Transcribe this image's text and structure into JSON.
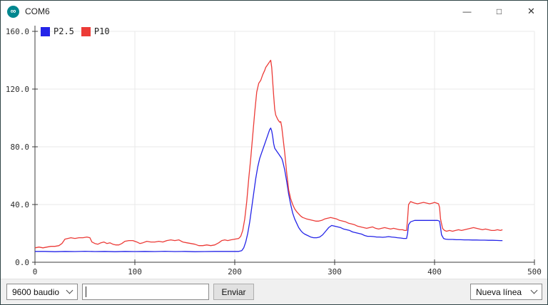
{
  "window": {
    "title": "COM6",
    "app_icon_glyph": "∞",
    "controls": {
      "minimize": "—",
      "maximize": "□",
      "close": "✕"
    }
  },
  "bottom_bar": {
    "baud_select": {
      "value": "9600 baudio"
    },
    "send_input": {
      "value": "",
      "placeholder": ""
    },
    "send_button_label": "Enviar",
    "line_ending_select": {
      "value": "Nueva línea"
    }
  },
  "chart_data": {
    "type": "line",
    "title": "",
    "xlabel": "",
    "ylabel": "",
    "xlim": [
      0,
      500
    ],
    "ylim": [
      0,
      160
    ],
    "x_ticks": [
      0,
      100,
      200,
      300,
      400,
      500
    ],
    "y_ticks": [
      "0.0",
      "40.0",
      "80.0",
      "120.0",
      "160.0"
    ],
    "grid": true,
    "legend_position": "top-left",
    "series": [
      {
        "name": "P2.5",
        "color": "#2424e8",
        "points": [
          [
            0,
            7.5
          ],
          [
            10,
            7.5
          ],
          [
            20,
            7.3
          ],
          [
            30,
            7.5
          ],
          [
            40,
            7.4
          ],
          [
            50,
            7.6
          ],
          [
            60,
            7.4
          ],
          [
            70,
            7.5
          ],
          [
            80,
            7.3
          ],
          [
            90,
            7.5
          ],
          [
            100,
            7.4
          ],
          [
            110,
            7.5
          ],
          [
            120,
            7.4
          ],
          [
            130,
            7.6
          ],
          [
            140,
            7.4
          ],
          [
            150,
            7.5
          ],
          [
            160,
            7.3
          ],
          [
            170,
            7.4
          ],
          [
            180,
            7.5
          ],
          [
            190,
            7.5
          ],
          [
            200,
            7.5
          ],
          [
            204,
            7.5
          ],
          [
            207,
            8
          ],
          [
            209,
            10
          ],
          [
            211,
            14
          ],
          [
            213,
            20
          ],
          [
            215,
            28
          ],
          [
            217,
            38
          ],
          [
            219,
            48
          ],
          [
            221,
            58
          ],
          [
            223,
            66
          ],
          [
            225,
            72
          ],
          [
            227,
            76
          ],
          [
            229,
            80
          ],
          [
            231,
            84
          ],
          [
            233,
            88
          ],
          [
            235,
            92
          ],
          [
            236,
            93
          ],
          [
            237,
            91
          ],
          [
            238,
            87
          ],
          [
            239,
            82
          ],
          [
            240,
            79
          ],
          [
            242,
            77
          ],
          [
            244,
            75
          ],
          [
            246,
            73
          ],
          [
            247,
            72
          ],
          [
            248,
            70
          ],
          [
            250,
            64
          ],
          [
            252,
            56
          ],
          [
            254,
            47
          ],
          [
            256,
            40
          ],
          [
            258,
            34
          ],
          [
            260,
            30
          ],
          [
            262,
            27
          ],
          [
            264,
            24
          ],
          [
            266,
            22
          ],
          [
            268,
            20.5
          ],
          [
            270,
            19.5
          ],
          [
            273,
            18.5
          ],
          [
            276,
            17.5
          ],
          [
            279,
            17
          ],
          [
            282,
            17
          ],
          [
            285,
            17.5
          ],
          [
            288,
            19
          ],
          [
            291,
            21.5
          ],
          [
            294,
            24
          ],
          [
            297,
            25.5
          ],
          [
            300,
            25
          ],
          [
            303,
            24.5
          ],
          [
            306,
            24
          ],
          [
            309,
            23
          ],
          [
            312,
            22.5
          ],
          [
            315,
            22
          ],
          [
            318,
            21
          ],
          [
            321,
            20.5
          ],
          [
            324,
            20
          ],
          [
            327,
            19.5
          ],
          [
            330,
            18.5
          ],
          [
            333,
            18
          ],
          [
            336,
            18
          ],
          [
            339,
            17.8
          ],
          [
            342,
            17.5
          ],
          [
            345,
            17.5
          ],
          [
            348,
            17.3
          ],
          [
            351,
            17.5
          ],
          [
            354,
            17.8
          ],
          [
            357,
            17.5
          ],
          [
            360,
            17.3
          ],
          [
            363,
            17
          ],
          [
            366,
            16.8
          ],
          [
            369,
            16.5
          ],
          [
            372,
            16.5
          ],
          [
            373,
            20
          ],
          [
            374,
            26
          ],
          [
            376,
            28
          ],
          [
            378,
            28.5
          ],
          [
            380,
            29
          ],
          [
            384,
            29
          ],
          [
            388,
            29
          ],
          [
            392,
            29
          ],
          [
            396,
            29
          ],
          [
            400,
            29
          ],
          [
            403,
            29
          ],
          [
            405,
            28.5
          ],
          [
            406,
            24
          ],
          [
            407,
            19
          ],
          [
            409,
            16.5
          ],
          [
            411,
            16
          ],
          [
            414,
            15.8
          ],
          [
            418,
            15.8
          ],
          [
            422,
            15.6
          ],
          [
            426,
            15.6
          ],
          [
            430,
            15.5
          ],
          [
            434,
            15.5
          ],
          [
            438,
            15.4
          ],
          [
            442,
            15.4
          ],
          [
            446,
            15.3
          ],
          [
            450,
            15.3
          ],
          [
            454,
            15.2
          ],
          [
            458,
            15.2
          ],
          [
            462,
            15.1
          ],
          [
            466,
            15
          ],
          [
            468,
            15
          ]
        ]
      },
      {
        "name": "P10",
        "color": "#ec3b37",
        "points": [
          [
            0,
            10
          ],
          [
            4,
            10.5
          ],
          [
            8,
            10
          ],
          [
            12,
            10.5
          ],
          [
            16,
            11
          ],
          [
            20,
            11
          ],
          [
            24,
            11.5
          ],
          [
            27,
            13
          ],
          [
            30,
            16
          ],
          [
            33,
            16.5
          ],
          [
            36,
            17
          ],
          [
            40,
            16.5
          ],
          [
            44,
            17
          ],
          [
            48,
            17
          ],
          [
            52,
            17.5
          ],
          [
            55,
            17
          ],
          [
            57,
            14
          ],
          [
            60,
            13
          ],
          [
            63,
            12.5
          ],
          [
            66,
            13.5
          ],
          [
            69,
            14
          ],
          [
            72,
            13
          ],
          [
            75,
            13.5
          ],
          [
            78,
            12.5
          ],
          [
            81,
            12
          ],
          [
            84,
            12
          ],
          [
            87,
            13
          ],
          [
            90,
            14.5
          ],
          [
            94,
            15
          ],
          [
            98,
            15
          ],
          [
            102,
            14
          ],
          [
            105,
            13
          ],
          [
            108,
            13.5
          ],
          [
            112,
            14.5
          ],
          [
            116,
            14
          ],
          [
            120,
            14
          ],
          [
            124,
            14.5
          ],
          [
            128,
            14
          ],
          [
            132,
            15
          ],
          [
            136,
            15.5
          ],
          [
            140,
            15
          ],
          [
            144,
            15.5
          ],
          [
            148,
            14
          ],
          [
            152,
            13.5
          ],
          [
            156,
            13
          ],
          [
            160,
            12.5
          ],
          [
            164,
            11.5
          ],
          [
            168,
            11.5
          ],
          [
            172,
            12
          ],
          [
            176,
            11.5
          ],
          [
            180,
            12
          ],
          [
            184,
            13.5
          ],
          [
            187,
            15
          ],
          [
            190,
            15.5
          ],
          [
            193,
            15
          ],
          [
            196,
            15.5
          ],
          [
            200,
            16
          ],
          [
            204,
            16.5
          ],
          [
            206,
            18
          ],
          [
            208,
            22
          ],
          [
            210,
            30
          ],
          [
            212,
            42
          ],
          [
            214,
            58
          ],
          [
            216,
            72
          ],
          [
            218,
            88
          ],
          [
            220,
            104
          ],
          [
            222,
            118
          ],
          [
            224,
            124
          ],
          [
            226,
            126
          ],
          [
            228,
            130
          ],
          [
            230,
            133
          ],
          [
            231,
            135
          ],
          [
            233,
            137
          ],
          [
            235,
            139
          ],
          [
            236,
            140
          ],
          [
            237,
            135
          ],
          [
            238,
            125
          ],
          [
            239,
            115
          ],
          [
            240,
            106
          ],
          [
            241,
            102
          ],
          [
            243,
            99
          ],
          [
            245,
            97
          ],
          [
            246,
            97.5
          ],
          [
            247,
            94
          ],
          [
            248,
            88
          ],
          [
            250,
            76
          ],
          [
            252,
            62
          ],
          [
            254,
            50
          ],
          [
            256,
            44
          ],
          [
            258,
            40
          ],
          [
            260,
            37
          ],
          [
            262,
            35
          ],
          [
            264,
            33.5
          ],
          [
            266,
            32
          ],
          [
            268,
            31
          ],
          [
            270,
            30.5
          ],
          [
            272,
            30
          ],
          [
            275,
            29.5
          ],
          [
            278,
            29
          ],
          [
            281,
            28.5
          ],
          [
            284,
            28.5
          ],
          [
            287,
            29
          ],
          [
            290,
            30
          ],
          [
            293,
            30.5
          ],
          [
            296,
            31
          ],
          [
            299,
            30.5
          ],
          [
            302,
            30
          ],
          [
            305,
            29
          ],
          [
            308,
            28.5
          ],
          [
            311,
            28
          ],
          [
            314,
            27
          ],
          [
            317,
            26.5
          ],
          [
            320,
            26
          ],
          [
            323,
            25
          ],
          [
            326,
            24.5
          ],
          [
            329,
            24
          ],
          [
            332,
            23.5
          ],
          [
            335,
            24
          ],
          [
            338,
            24.5
          ],
          [
            341,
            23.5
          ],
          [
            344,
            23
          ],
          [
            347,
            23.5
          ],
          [
            350,
            24
          ],
          [
            353,
            23.5
          ],
          [
            356,
            23
          ],
          [
            359,
            23.5
          ],
          [
            362,
            23
          ],
          [
            365,
            22.5
          ],
          [
            368,
            22.5
          ],
          [
            370,
            22
          ],
          [
            372,
            22
          ],
          [
            373,
            30
          ],
          [
            374,
            40
          ],
          [
            376,
            42
          ],
          [
            378,
            41.5
          ],
          [
            380,
            41
          ],
          [
            383,
            40.5
          ],
          [
            386,
            41
          ],
          [
            389,
            41.5
          ],
          [
            392,
            41
          ],
          [
            395,
            40.5
          ],
          [
            398,
            41
          ],
          [
            400,
            41.5
          ],
          [
            402,
            41
          ],
          [
            404,
            40.5
          ],
          [
            405,
            38
          ],
          [
            406,
            30
          ],
          [
            408,
            23.5
          ],
          [
            410,
            22
          ],
          [
            412,
            21.5
          ],
          [
            415,
            22
          ],
          [
            418,
            21.5
          ],
          [
            421,
            22
          ],
          [
            424,
            22.5
          ],
          [
            427,
            22
          ],
          [
            430,
            22.5
          ],
          [
            433,
            23
          ],
          [
            436,
            23.5
          ],
          [
            439,
            24
          ],
          [
            442,
            23.5
          ],
          [
            445,
            23
          ],
          [
            448,
            22.5
          ],
          [
            451,
            23
          ],
          [
            454,
            22.5
          ],
          [
            457,
            22
          ],
          [
            460,
            22
          ],
          [
            463,
            22.5
          ],
          [
            466,
            22
          ],
          [
            468,
            22.5
          ]
        ]
      }
    ]
  }
}
